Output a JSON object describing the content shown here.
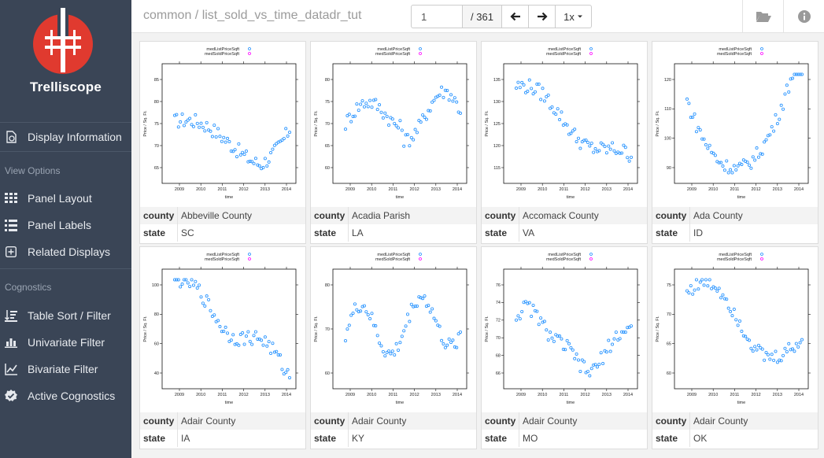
{
  "app": {
    "brand": "Trelliscope"
  },
  "sidebar": {
    "display_info": {
      "label": "Display Information",
      "icon": "document-info-icon"
    },
    "view_options_heading": "View Options",
    "view_items": [
      {
        "label": "Panel Layout",
        "icon": "grid-icon"
      },
      {
        "label": "Panel Labels",
        "icon": "list-icon"
      },
      {
        "label": "Related Displays",
        "icon": "plus-square-icon"
      }
    ],
    "cognostics_heading": "Cognostics",
    "cog_items": [
      {
        "label": "Table Sort / Filter",
        "icon": "sort-icon"
      },
      {
        "label": "Univariate Filter",
        "icon": "bar-chart-icon"
      },
      {
        "label": "Bivariate Filter",
        "icon": "line-chart-icon"
      },
      {
        "label": "Active Cognostics",
        "icon": "badge-check-icon"
      }
    ]
  },
  "header": {
    "breadcrumb": "common / list_sold_vs_time_datadr_tut",
    "page_input": "1",
    "page_total": "/ 361",
    "zoom": "1x",
    "prev_icon": "arrow-left-icon",
    "next_icon": "arrow-right-icon",
    "folder_icon": "folder-open-icon",
    "info_icon": "info-circle-icon"
  },
  "plot_common": {
    "legend": [
      "medListPriceSqft",
      "medSoldPriceSqft"
    ],
    "xlabel": "time",
    "ylabel": "Price / Sq. Ft.",
    "x_ticks": [
      "2009",
      "2010",
      "2011",
      "2012",
      "2013",
      "2014"
    ],
    "colors": {
      "list": "#1f8fff",
      "sold": "#ff00ff"
    }
  },
  "cog_labels": {
    "county": "county",
    "state": "state"
  },
  "panels": [
    {
      "county": "Abbeville County",
      "state": "SC",
      "y_ticks": [
        "65",
        "70",
        "75",
        "80",
        "85"
      ]
    },
    {
      "county": "Acadia Parish",
      "state": "LA",
      "y_ticks": [
        "60",
        "65",
        "70",
        "75",
        "80"
      ]
    },
    {
      "county": "Accomack County",
      "state": "VA",
      "y_ticks": [
        "115",
        "120",
        "125",
        "130",
        "135"
      ]
    },
    {
      "county": "Ada County",
      "state": "ID",
      "y_ticks": [
        "90",
        "100",
        "110",
        "120"
      ]
    },
    {
      "county": "Adair County",
      "state": "IA",
      "y_ticks": [
        "40",
        "60",
        "80",
        "100"
      ]
    },
    {
      "county": "Adair County",
      "state": "KY",
      "y_ticks": [
        "60",
        "70",
        "80"
      ]
    },
    {
      "county": "Adair County",
      "state": "MO",
      "y_ticks": [
        "66",
        "68",
        "70",
        "72",
        "74",
        "76"
      ]
    },
    {
      "county": "Adair County",
      "state": "OK",
      "y_ticks": [
        "60",
        "65",
        "70",
        "75"
      ]
    }
  ]
}
